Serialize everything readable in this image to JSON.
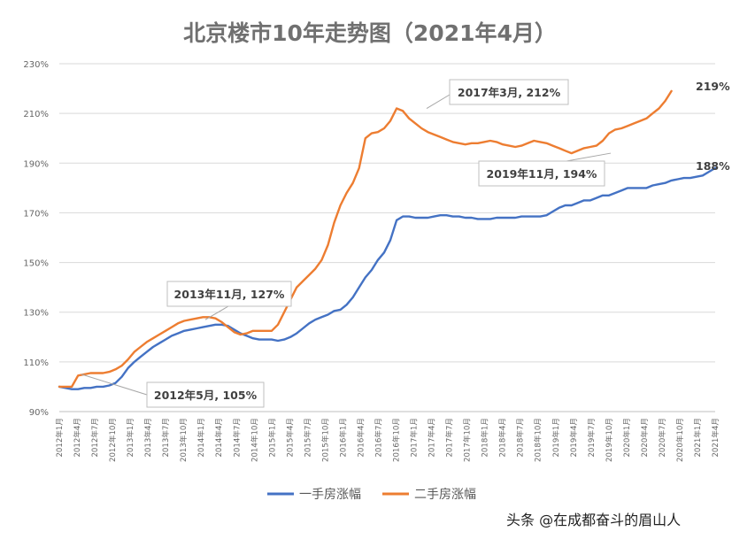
{
  "chart_data": {
    "type": "line",
    "title": "北京楼市10年走势图（2021年4月）",
    "ylim": [
      90,
      230
    ],
    "yticks": [
      90,
      110,
      130,
      150,
      170,
      190,
      210,
      230
    ],
    "ytick_format": "%",
    "x_tick_labels": [
      "2012年1月",
      "2012年4月",
      "2012年7月",
      "2012年10月",
      "2013年1月",
      "2013年4月",
      "2013年7月",
      "2013年10月",
      "2014年1月",
      "2014年4月",
      "2014年7月",
      "2014年10月",
      "2015年1月",
      "2015年4月",
      "2015年7月",
      "2015年10月",
      "2016年1月",
      "2016年4月",
      "2016年7月",
      "2016年10月",
      "2017年1月",
      "2017年4月",
      "2017年7月",
      "2017年10月",
      "2018年1月",
      "2018年4月",
      "2018年7月",
      "2018年10月",
      "2019年1月",
      "2019年4月",
      "2019年7月",
      "2019年10月",
      "2020年1月",
      "2020年4月",
      "2020年7月",
      "2020年10月",
      "2021年1月",
      "2021年4月"
    ],
    "grid": true,
    "legend_position": "bottom",
    "series": [
      {
        "name": "一手房涨幅",
        "color": "#4472c4",
        "values": [
          100,
          99.5,
          99,
          99,
          99.5,
          99.5,
          100,
          100,
          100.5,
          101.5,
          104,
          107.5,
          110,
          112,
          114,
          116,
          117.5,
          119,
          120.5,
          121.5,
          122.5,
          123,
          123.5,
          124,
          124.5,
          125,
          125,
          124.5,
          123,
          121.5,
          120.5,
          119.5,
          119,
          119,
          119,
          118.5,
          119,
          120,
          121.5,
          123.5,
          125.5,
          127,
          128,
          129,
          130.5,
          131,
          133,
          136,
          140,
          144,
          147,
          151,
          154,
          159,
          167,
          168.5,
          168.5,
          168,
          168,
          168,
          168.5,
          169,
          169,
          168.5,
          168.5,
          168,
          168,
          167.5,
          167.5,
          167.5,
          168,
          168,
          168,
          168,
          168.5,
          168.5,
          168.5,
          168.5,
          169,
          170.5,
          172,
          173,
          173,
          174,
          175,
          175,
          176,
          177,
          177,
          178,
          179,
          180,
          180,
          180,
          180,
          181,
          181.5,
          182,
          183,
          183.5,
          184,
          184,
          184.5,
          185,
          186.5,
          188
        ]
      },
      {
        "name": "二手房涨幅",
        "color": "#ed7d31",
        "values": [
          100,
          100,
          100,
          104.5,
          105,
          105.5,
          105.5,
          105.5,
          106,
          107,
          108.5,
          111,
          114,
          116,
          118,
          119.5,
          121,
          122.5,
          124,
          125.5,
          126.5,
          127,
          127.5,
          128,
          128,
          127.5,
          126,
          124,
          122,
          121,
          121.5,
          122.5,
          122.5,
          122.5,
          122.5,
          125,
          130,
          135,
          140,
          142.5,
          145,
          147.5,
          151,
          157,
          166,
          173,
          178,
          182,
          188,
          200,
          202,
          202.5,
          204,
          207,
          212,
          211,
          208,
          206,
          204,
          202.5,
          201.5,
          200.5,
          199.5,
          198.5,
          198,
          197.5,
          198,
          198,
          198.5,
          199,
          198.5,
          197.5,
          197,
          196.5,
          197,
          198,
          199,
          198.5,
          198,
          197,
          196,
          195,
          194,
          195,
          196,
          196.5,
          197,
          199,
          202,
          203.5,
          204,
          205,
          206,
          207,
          208,
          210,
          212,
          215,
          219
        ]
      }
    ],
    "annotations": [
      {
        "label": "2012年5月, 105%"
      },
      {
        "label": "2013年11月, 127%"
      },
      {
        "label": "2017年3月, 212%"
      },
      {
        "label": "2019年11月, 194%"
      },
      {
        "label": "219%"
      },
      {
        "label": "188%"
      }
    ]
  },
  "watermark": "头条 @在成都奋斗的眉山人"
}
